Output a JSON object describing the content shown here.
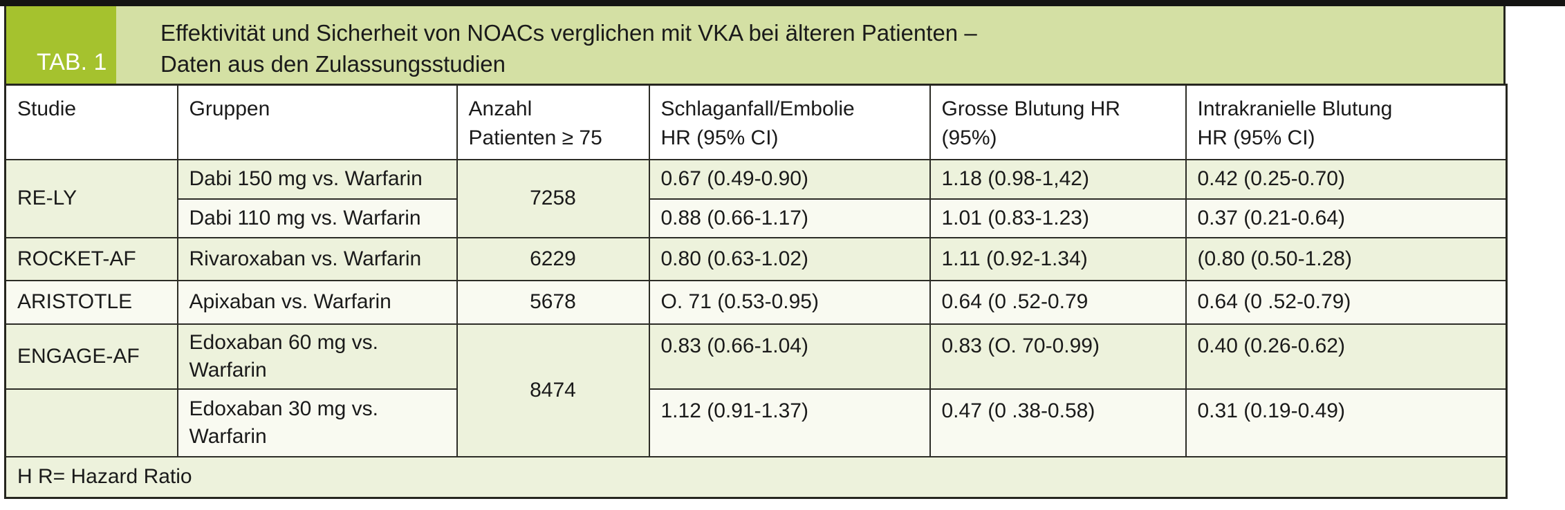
{
  "header": {
    "tab_label": "TAB. 1",
    "title": "Effektivität und Sicherheit von NOACs verglichen mit VKA bei älteren Patienten –\nDaten aus den Zulassungsstudien"
  },
  "columns": {
    "studie": "Studie",
    "gruppen": "Gruppen",
    "anzahl": "Anzahl\nPatienten ≥ 75",
    "schlaganfall": "Schlaganfall/Embolie\nHR (95% CI)",
    "grosse": "Grosse Blutung HR\n(95%)",
    "intrakraniell": "Intrakranielle Blutung\nHR (95% CI)"
  },
  "rows": {
    "rely": {
      "studie": "RE-LY",
      "anzahl": "7258",
      "r1": {
        "gruppe": "Dabi 150 mg vs. Warfarin",
        "schlaganfall": "0.67 (0.49-0.90)",
        "grosse": "1.18 (0.98-1,42)",
        "intrakraniell": "0.42 (0.25-0.70)"
      },
      "r2": {
        "gruppe": "Dabi 110 mg vs. Warfarin",
        "schlaganfall": "0.88 (0.66-1.17)",
        "grosse": "1.01 (0.83-1.23)",
        "intrakraniell": "0.37 (0.21-0.64)"
      }
    },
    "rocket": {
      "studie": "ROCKET-AF",
      "gruppe": "Rivaroxaban vs. Warfarin",
      "anzahl": "6229",
      "schlaganfall": "0.80 (0.63-1.02)",
      "grosse": "1.11 (0.92-1.34)",
      "intrakraniell": "(0.80 (0.50-1.28)"
    },
    "aristotle": {
      "studie": "ARISTOTLE",
      "gruppe": "Apixaban vs. Warfarin",
      "anzahl": "5678",
      "schlaganfall": "O. 71 (0.53-0.95)",
      "grosse": "0.64 (0 .52-0.79",
      "intrakraniell": "0.64 (0 .52-0.79)"
    },
    "engage": {
      "studie": "ENGAGE-AF",
      "anzahl": "8474",
      "r1": {
        "gruppe": "Edoxaban 60 mg vs.\nWarfarin",
        "schlaganfall": "0.83 (0.66-1.04)",
        "grosse": "0.83 (O. 70-0.99)",
        "intrakraniell": "0.40 (0.26-0.62)"
      },
      "r2": {
        "gruppe": "Edoxaban 30 mg vs.\nWarfarin",
        "schlaganfall": "1.12 (0.91-1.37)",
        "grosse": "0.47 (0 .38-0.58)",
        "intrakraniell": "0.31 (0.19-0.49)"
      }
    }
  },
  "footnote": "H R= Hazard Ratio",
  "colors": {
    "top_rule": "#141412",
    "tab_badge": "#a5c22e",
    "tab_label_text": "#ffffff",
    "title_band": "#d4e0a4",
    "header_row": "#ffffff",
    "row_green": "#edf2dc",
    "row_light": "#f9faf1",
    "border": "#26261f",
    "text": "#1a1a1a"
  }
}
